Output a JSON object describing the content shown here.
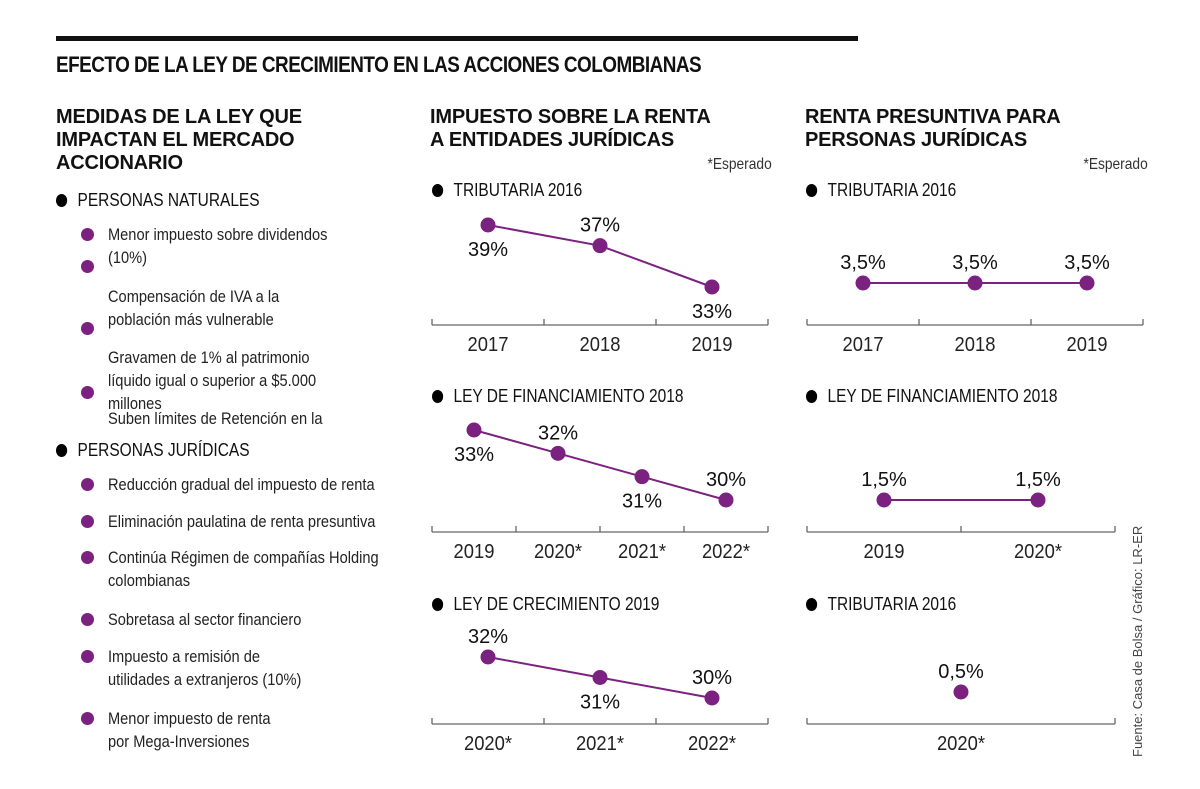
{
  "title": "EFECTO DE LA LEY DE CRECIMIENTO EN LAS ACCIONES COLOMBIANAS",
  "left_column": {
    "title_lines": [
      "MEDIDAS DE LA LEY QUE",
      "IMPACTAN EL MERCADO",
      "ACCIONARIO"
    ],
    "groups": [
      {
        "label": "PERSONAS NATURALES",
        "items": [
          "Menor impuesto sobre dividendos (10%)",
          "Compensación de IVA a la población más vulnerable",
          "Gravamen de 1% al patrimonio líquido igual o superior a $5.000 millones",
          "Suben límites de Retención en la"
        ]
      },
      {
        "label": "PERSONAS JURÍDICAS",
        "items": [
          "Reducción gradual del impuesto de renta",
          "Eliminación paulatina de renta presuntiva",
          "Continúa Régimen de compañías Holding colombianas",
          "Sobretasa al sector financiero",
          "Impuesto a remisión de utilidades a extranjeros (10%)",
          "Menor impuesto de renta por Mega-Inversiones"
        ]
      }
    ]
  },
  "middle_column": {
    "title_lines": [
      "IMPUESTO SOBRE LA RENTA",
      "A ENTIDADES JURÍDICAS"
    ],
    "note": "*Esperado"
  },
  "right_column": {
    "title_lines": [
      "RENTA PRESUNTIVA PARA",
      "PERSONAS JURÍDICAS"
    ],
    "note": "*Esperado"
  },
  "source": "Fuente: Casa de Bolsa / Gráfico: LR-ER",
  "colors": {
    "accent": "#7b2180",
    "text": "#111111",
    "axis": "#666666"
  },
  "chart_data": [
    {
      "type": "line",
      "panel": "Impuesto sobre la renta a entidades jurídicas",
      "title": "TRIBUTARIA 2016",
      "categories": [
        "2017",
        "2018",
        "2019"
      ],
      "values": [
        39,
        37,
        33
      ],
      "labels": [
        "39%",
        "37%",
        "33%"
      ],
      "label_pos": [
        "below",
        "above",
        "below"
      ],
      "unit": "%",
      "ylim": [
        29,
        40
      ]
    },
    {
      "type": "line",
      "panel": "Impuesto sobre la renta a entidades jurídicas",
      "title": "LEY DE FINANCIAMIENTO 2018",
      "categories": [
        "2019",
        "2020*",
        "2021*",
        "2022*"
      ],
      "values": [
        33,
        32,
        31,
        30
      ],
      "labels": [
        "33%",
        "32%",
        "31%",
        "30%"
      ],
      "label_pos": [
        "below",
        "above",
        "below",
        "above"
      ],
      "unit": "%",
      "ylim": [
        29.3,
        33.3
      ]
    },
    {
      "type": "line",
      "panel": "Impuesto sobre la renta a entidades jurídicas",
      "title": "LEY DE CRECIMIENTO 2019",
      "categories": [
        "2020*",
        "2021*",
        "2022*"
      ],
      "values": [
        32,
        31,
        30
      ],
      "labels": [
        "32%",
        "31%",
        "30%"
      ],
      "label_pos": [
        "above",
        "below",
        "above"
      ],
      "unit": "%",
      "ylim": [
        29,
        33
      ]
    },
    {
      "type": "line",
      "panel": "Renta presuntiva para personas jurídicas",
      "title": "TRIBUTARIA 2016",
      "categories": [
        "2017",
        "2018",
        "2019"
      ],
      "values": [
        3.5,
        3.5,
        3.5
      ],
      "labels": [
        "3,5%",
        "3,5%",
        "3,5%"
      ],
      "label_pos": [
        "above",
        "above",
        "above"
      ],
      "unit": "%",
      "ylim": [
        0,
        7
      ]
    },
    {
      "type": "line",
      "panel": "Renta presuntiva para personas jurídicas",
      "title": "LEY DE FINANCIAMIENTO 2018",
      "categories": [
        "2019",
        "2020*"
      ],
      "values": [
        1.5,
        1.5
      ],
      "labels": [
        "1,5%",
        "1,5%"
      ],
      "label_pos": [
        "above",
        "above"
      ],
      "unit": "%",
      "ylim": [
        0,
        3
      ]
    },
    {
      "type": "scatter",
      "panel": "Renta presuntiva para personas jurídicas",
      "title": "TRIBUTARIA 2016",
      "categories": [
        "2020*"
      ],
      "values": [
        0.5
      ],
      "labels": [
        "0,5%"
      ],
      "label_pos": [
        "above"
      ],
      "unit": "%",
      "ylim": [
        0,
        1
      ]
    }
  ]
}
